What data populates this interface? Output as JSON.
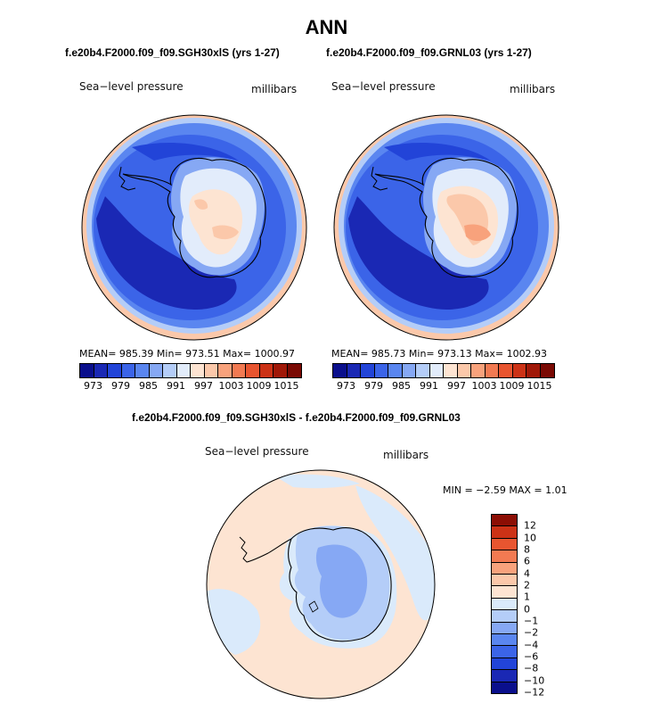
{
  "page": {
    "title": "ANN"
  },
  "panels": [
    {
      "title": "f.e20b4.F2000.f09_f09.SGH30xlS (yrs 1-27)",
      "left_label": "Sea−level pressure",
      "right_label": "millibars",
      "stats": "MEAN= 985.39   Min= 973.51   Max= 1000.97"
    },
    {
      "title": "f.e20b4.F2000.f09_f09.GRNL03 (yrs 1-27)",
      "left_label": "Sea−level pressure",
      "right_label": "millibars",
      "stats": "MEAN= 985.73   Min= 973.13   Max= 1002.93"
    }
  ],
  "diff_panel": {
    "title": "f.e20b4.F2000.f09_f09.SGH30xlS - f.e20b4.F2000.f09_f09.GRNL03",
    "left_label": "Sea−level pressure",
    "right_label": "millibars",
    "stats": "MIN =  −2.59  MAX =    1.01"
  },
  "colors": {
    "levels_cmap": [
      "#0a0f8c",
      "#1a28b4",
      "#2244d8",
      "#3b64e8",
      "#5a86f0",
      "#86a8f4",
      "#b4cdf8",
      "#e2ecfb",
      "#fde4d2",
      "#fbc8aa",
      "#f8a27c",
      "#f27a52",
      "#e85530",
      "#cc3216",
      "#a01808",
      "#7a0a04"
    ],
    "diff_cmap": [
      "#0a0f8c",
      "#1a28b4",
      "#2244d8",
      "#3b64e8",
      "#5a86f0",
      "#86a8f4",
      "#b4cdf8",
      "#daeafb",
      "#fde4d2",
      "#fbc8aa",
      "#f8a27c",
      "#f27a52",
      "#e85530",
      "#cc3216",
      "#8c0e04"
    ],
    "ocean_a": "#5a86f0",
    "diff_background": "#fde4d2"
  },
  "chart_data": [
    {
      "type": "heatmap",
      "projection": "south-polar-stereographic",
      "title": "f.e20b4.F2000.f09_f09.SGH30xlS (yrs 1-27)",
      "variable": "Sea−level pressure",
      "units": "millibars",
      "mean": 985.39,
      "min": 973.51,
      "max": 1000.97,
      "colorbar_ticks": [
        "973",
        "979",
        "985",
        "991",
        "997",
        "1003",
        "1009",
        "1015"
      ]
    },
    {
      "type": "heatmap",
      "projection": "south-polar-stereographic",
      "title": "f.e20b4.F2000.f09_f09.GRNL03 (yrs 1-27)",
      "variable": "Sea−level pressure",
      "units": "millibars",
      "mean": 985.73,
      "min": 973.13,
      "max": 1002.93,
      "colorbar_ticks": [
        "973",
        "979",
        "985",
        "991",
        "997",
        "1003",
        "1009",
        "1015"
      ]
    },
    {
      "type": "heatmap",
      "projection": "south-polar-stereographic",
      "title": "f.e20b4.F2000.f09_f09.SGH30xlS - f.e20b4.F2000.f09_f09.GRNL03",
      "variable": "Sea−level pressure",
      "units": "millibars",
      "min": -2.59,
      "max": 1.01,
      "colorbar_ticks": [
        "12",
        "10",
        "8",
        "6",
        "4",
        "2",
        "1",
        "0",
        "−1",
        "−2",
        "−4",
        "−6",
        "−8",
        "−10",
        "−12"
      ]
    }
  ]
}
